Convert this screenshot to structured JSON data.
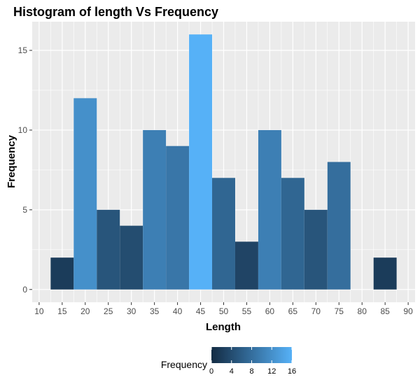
{
  "chart_data": {
    "type": "bar",
    "title": "Histogram of length Vs Frequency",
    "xlabel": "Length",
    "ylabel": "Frequency",
    "x_ticks": [
      "10",
      "15",
      "20",
      "25",
      "30",
      "35",
      "40",
      "45",
      "50",
      "55",
      "60",
      "65",
      "70",
      "75",
      "80",
      "85",
      "90"
    ],
    "y_ticks": [
      "0",
      "5",
      "10",
      "15"
    ],
    "xlim": [
      8.5,
      91.5
    ],
    "ylim": [
      -0.8,
      16.8
    ],
    "bin_width": 5,
    "bins": [
      {
        "center": 15,
        "count": 2
      },
      {
        "center": 20,
        "count": 12
      },
      {
        "center": 25,
        "count": 5
      },
      {
        "center": 30,
        "count": 4
      },
      {
        "center": 35,
        "count": 10
      },
      {
        "center": 40,
        "count": 9
      },
      {
        "center": 45,
        "count": 16
      },
      {
        "center": 50,
        "count": 7
      },
      {
        "center": 55,
        "count": 3
      },
      {
        "center": 60,
        "count": 10
      },
      {
        "center": 65,
        "count": 7
      },
      {
        "center": 70,
        "count": 5
      },
      {
        "center": 75,
        "count": 8
      },
      {
        "center": 80,
        "count": 0
      },
      {
        "center": 85,
        "count": 2
      }
    ],
    "grid": true,
    "legend": {
      "title": "Frequency",
      "position": "bottom",
      "ticks": [
        "0",
        "4",
        "8",
        "12",
        "16"
      ],
      "range": [
        0,
        16
      ],
      "low_color": "#132B43",
      "high_color": "#56B1F7"
    },
    "colors": {
      "panel_background": "#EBEBEB",
      "grid": "#FFFFFF"
    }
  }
}
